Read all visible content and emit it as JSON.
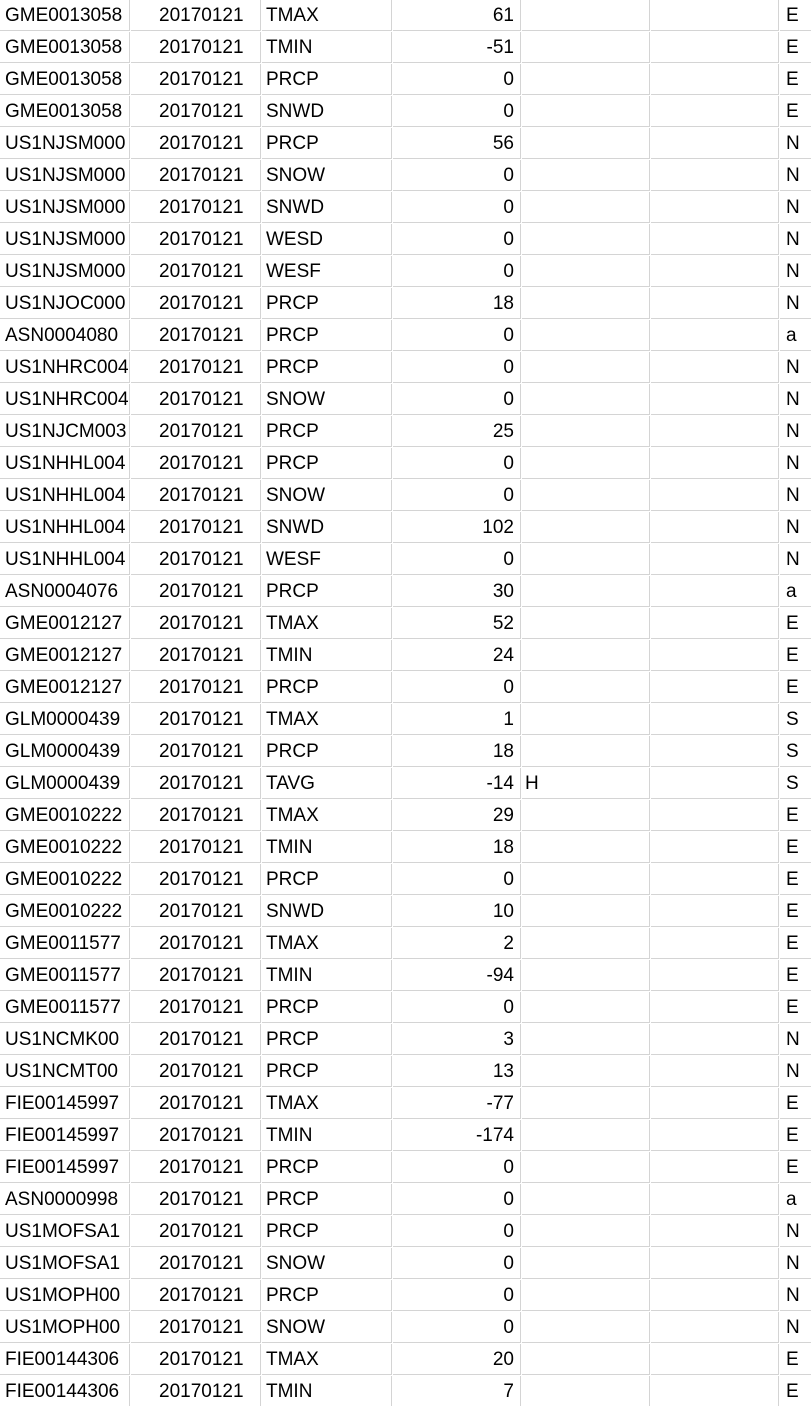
{
  "sheet": {
    "rows": [
      {
        "station": "GME0013058",
        "date": "20170121",
        "element": "TMAX",
        "value": "61",
        "mflag": "",
        "qflag": "",
        "sflag": "E"
      },
      {
        "station": "GME0013058",
        "date": "20170121",
        "element": "TMIN",
        "value": "-51",
        "mflag": "",
        "qflag": "",
        "sflag": "E"
      },
      {
        "station": "GME0013058",
        "date": "20170121",
        "element": "PRCP",
        "value": "0",
        "mflag": "",
        "qflag": "",
        "sflag": "E"
      },
      {
        "station": "GME0013058",
        "date": "20170121",
        "element": "SNWD",
        "value": "0",
        "mflag": "",
        "qflag": "",
        "sflag": "E"
      },
      {
        "station": "US1NJSM000",
        "date": "20170121",
        "element": "PRCP",
        "value": "56",
        "mflag": "",
        "qflag": "",
        "sflag": "N"
      },
      {
        "station": "US1NJSM000",
        "date": "20170121",
        "element": "SNOW",
        "value": "0",
        "mflag": "",
        "qflag": "",
        "sflag": "N"
      },
      {
        "station": "US1NJSM000",
        "date": "20170121",
        "element": "SNWD",
        "value": "0",
        "mflag": "",
        "qflag": "",
        "sflag": "N"
      },
      {
        "station": "US1NJSM000",
        "date": "20170121",
        "element": "WESD",
        "value": "0",
        "mflag": "",
        "qflag": "",
        "sflag": "N"
      },
      {
        "station": "US1NJSM000",
        "date": "20170121",
        "element": "WESF",
        "value": "0",
        "mflag": "",
        "qflag": "",
        "sflag": "N"
      },
      {
        "station": "US1NJOC000",
        "date": "20170121",
        "element": "PRCP",
        "value": "18",
        "mflag": "",
        "qflag": "",
        "sflag": "N"
      },
      {
        "station": "ASN0004080",
        "date": "20170121",
        "element": "PRCP",
        "value": "0",
        "mflag": "",
        "qflag": "",
        "sflag": "a"
      },
      {
        "station": "US1NHRC004",
        "date": "20170121",
        "element": "PRCP",
        "value": "0",
        "mflag": "",
        "qflag": "",
        "sflag": "N"
      },
      {
        "station": "US1NHRC004",
        "date": "20170121",
        "element": "SNOW",
        "value": "0",
        "mflag": "",
        "qflag": "",
        "sflag": "N"
      },
      {
        "station": "US1NJCM003",
        "date": "20170121",
        "element": "PRCP",
        "value": "25",
        "mflag": "",
        "qflag": "",
        "sflag": "N"
      },
      {
        "station": "US1NHHL004",
        "date": "20170121",
        "element": "PRCP",
        "value": "0",
        "mflag": "",
        "qflag": "",
        "sflag": "N"
      },
      {
        "station": "US1NHHL004",
        "date": "20170121",
        "element": "SNOW",
        "value": "0",
        "mflag": "",
        "qflag": "",
        "sflag": "N"
      },
      {
        "station": "US1NHHL004",
        "date": "20170121",
        "element": "SNWD",
        "value": "102",
        "mflag": "",
        "qflag": "",
        "sflag": "N"
      },
      {
        "station": "US1NHHL004",
        "date": "20170121",
        "element": "WESF",
        "value": "0",
        "mflag": "",
        "qflag": "",
        "sflag": "N"
      },
      {
        "station": "ASN0004076",
        "date": "20170121",
        "element": "PRCP",
        "value": "30",
        "mflag": "",
        "qflag": "",
        "sflag": "a"
      },
      {
        "station": "GME0012127",
        "date": "20170121",
        "element": "TMAX",
        "value": "52",
        "mflag": "",
        "qflag": "",
        "sflag": "E"
      },
      {
        "station": "GME0012127",
        "date": "20170121",
        "element": "TMIN",
        "value": "24",
        "mflag": "",
        "qflag": "",
        "sflag": "E"
      },
      {
        "station": "GME0012127",
        "date": "20170121",
        "element": "PRCP",
        "value": "0",
        "mflag": "",
        "qflag": "",
        "sflag": "E"
      },
      {
        "station": "GLM0000439",
        "date": "20170121",
        "element": "TMAX",
        "value": "1",
        "mflag": "",
        "qflag": "",
        "sflag": "S"
      },
      {
        "station": "GLM0000439",
        "date": "20170121",
        "element": "PRCP",
        "value": "18",
        "mflag": "",
        "qflag": "",
        "sflag": "S"
      },
      {
        "station": "GLM0000439",
        "date": "20170121",
        "element": "TAVG",
        "value": "-14",
        "mflag": "H",
        "qflag": "",
        "sflag": "S"
      },
      {
        "station": "GME0010222",
        "date": "20170121",
        "element": "TMAX",
        "value": "29",
        "mflag": "",
        "qflag": "",
        "sflag": "E"
      },
      {
        "station": "GME0010222",
        "date": "20170121",
        "element": "TMIN",
        "value": "18",
        "mflag": "",
        "qflag": "",
        "sflag": "E"
      },
      {
        "station": "GME0010222",
        "date": "20170121",
        "element": "PRCP",
        "value": "0",
        "mflag": "",
        "qflag": "",
        "sflag": "E"
      },
      {
        "station": "GME0010222",
        "date": "20170121",
        "element": "SNWD",
        "value": "10",
        "mflag": "",
        "qflag": "",
        "sflag": "E"
      },
      {
        "station": "GME0011577",
        "date": "20170121",
        "element": "TMAX",
        "value": "2",
        "mflag": "",
        "qflag": "",
        "sflag": "E"
      },
      {
        "station": "GME0011577",
        "date": "20170121",
        "element": "TMIN",
        "value": "-94",
        "mflag": "",
        "qflag": "",
        "sflag": "E"
      },
      {
        "station": "GME0011577",
        "date": "20170121",
        "element": "PRCP",
        "value": "0",
        "mflag": "",
        "qflag": "",
        "sflag": "E"
      },
      {
        "station": "US1NCMK00",
        "date": "20170121",
        "element": "PRCP",
        "value": "3",
        "mflag": "",
        "qflag": "",
        "sflag": "N"
      },
      {
        "station": "US1NCMT00",
        "date": "20170121",
        "element": "PRCP",
        "value": "13",
        "mflag": "",
        "qflag": "",
        "sflag": "N"
      },
      {
        "station": "FIE00145997",
        "date": "20170121",
        "element": "TMAX",
        "value": "-77",
        "mflag": "",
        "qflag": "",
        "sflag": "E"
      },
      {
        "station": "FIE00145997",
        "date": "20170121",
        "element": "TMIN",
        "value": "-174",
        "mflag": "",
        "qflag": "",
        "sflag": "E"
      },
      {
        "station": "FIE00145997",
        "date": "20170121",
        "element": "PRCP",
        "value": "0",
        "mflag": "",
        "qflag": "",
        "sflag": "E"
      },
      {
        "station": "ASN0000998",
        "date": "20170121",
        "element": "PRCP",
        "value": "0",
        "mflag": "",
        "qflag": "",
        "sflag": "a"
      },
      {
        "station": "US1MOFSA1",
        "date": "20170121",
        "element": "PRCP",
        "value": "0",
        "mflag": "",
        "qflag": "",
        "sflag": "N"
      },
      {
        "station": "US1MOFSA1",
        "date": "20170121",
        "element": "SNOW",
        "value": "0",
        "mflag": "",
        "qflag": "",
        "sflag": "N"
      },
      {
        "station": "US1MOPH00",
        "date": "20170121",
        "element": "PRCP",
        "value": "0",
        "mflag": "",
        "qflag": "",
        "sflag": "N"
      },
      {
        "station": "US1MOPH00",
        "date": "20170121",
        "element": "SNOW",
        "value": "0",
        "mflag": "",
        "qflag": "",
        "sflag": "N"
      },
      {
        "station": "FIE00144306",
        "date": "20170121",
        "element": "TMAX",
        "value": "20",
        "mflag": "",
        "qflag": "",
        "sflag": "E"
      },
      {
        "station": "FIE00144306",
        "date": "20170121",
        "element": "TMIN",
        "value": "7",
        "mflag": "",
        "qflag": "",
        "sflag": "E"
      }
    ]
  }
}
